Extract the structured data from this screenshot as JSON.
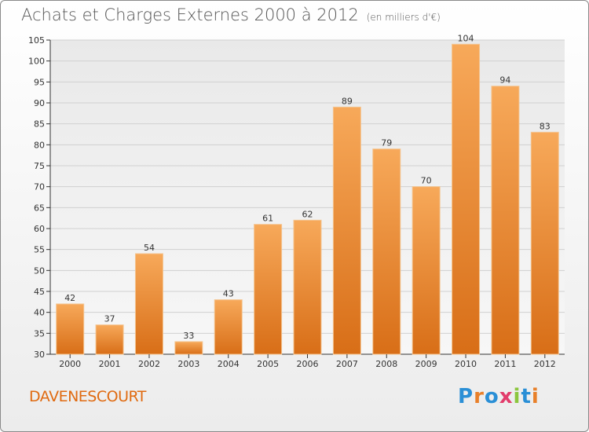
{
  "header": {
    "title": "Achats et Charges Externes 2000 à 2012",
    "unit": "(en milliers d'€)"
  },
  "commune": "DAVENESCOURT",
  "logo": "Proxiti",
  "colors": {
    "bar_light": "#f7a95a",
    "bar_dark": "#d86e17",
    "accent": "#e06a10"
  },
  "chart_data": {
    "type": "bar",
    "title": "Achats et Charges Externes 2000 à 2012",
    "xlabel": "",
    "ylabel": "",
    "categories": [
      "2000",
      "2001",
      "2002",
      "2003",
      "2004",
      "2005",
      "2006",
      "2007",
      "2008",
      "2009",
      "2010",
      "2011",
      "2012"
    ],
    "values": [
      42,
      37,
      54,
      33,
      43,
      61,
      62,
      89,
      79,
      70,
      104,
      94,
      83
    ],
    "ylim": [
      30,
      105
    ],
    "yticks": [
      30,
      35,
      40,
      45,
      50,
      55,
      60,
      65,
      70,
      75,
      80,
      85,
      90,
      95,
      100,
      105
    ],
    "grid": true,
    "legend": "none"
  }
}
